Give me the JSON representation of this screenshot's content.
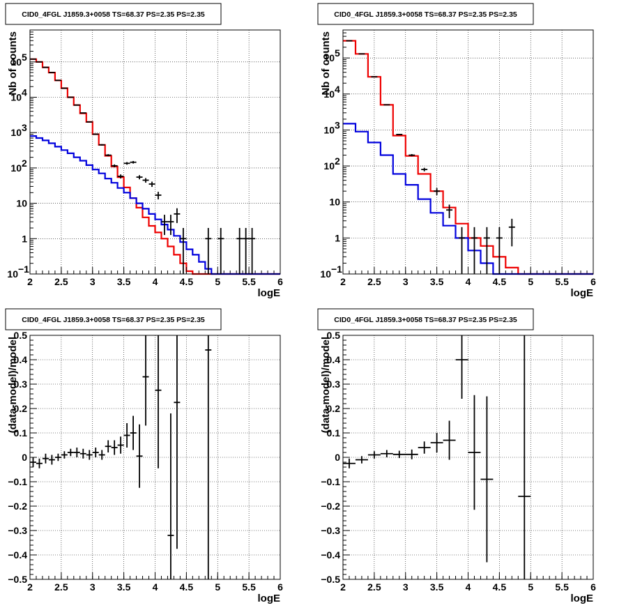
{
  "chart_data": [
    {
      "type": "step-histogram",
      "title": "CID0_4FGL J1859.3+0058 TS=68.37 PS=2.35 PS=2.35",
      "xlabel": "logE",
      "ylabel": "Nb of counts",
      "xlim": [
        2,
        6
      ],
      "ylim": [
        0.1,
        800000
      ],
      "ylog": true,
      "grid": true,
      "xticks": [
        "2",
        "2.5",
        "3",
        "3.5",
        "4",
        "4.5",
        "5",
        "5.5",
        "6"
      ],
      "yticks": [
        {
          "v": 0.1,
          "label": "10",
          "sup": "−1"
        },
        {
          "v": 1,
          "label": "1",
          "sup": ""
        },
        {
          "v": 10,
          "label": "10",
          "sup": ""
        },
        {
          "v": 100,
          "label": "10",
          "sup": "2"
        },
        {
          "v": 1000,
          "label": "10",
          "sup": "3"
        },
        {
          "v": 10000,
          "label": "10",
          "sup": "4"
        },
        {
          "v": 100000,
          "label": "10",
          "sup": "5"
        }
      ],
      "edges": [
        2.0,
        2.1,
        2.2,
        2.3,
        2.4,
        2.5,
        2.6,
        2.7,
        2.8,
        2.9,
        3.0,
        3.1,
        3.2,
        3.3,
        3.4,
        3.5,
        3.6,
        3.7,
        3.8,
        3.9,
        4.0,
        4.1,
        4.2,
        4.3,
        4.4,
        4.5,
        4.6,
        4.7,
        4.8,
        4.9,
        5.0,
        5.1,
        5.2,
        5.3,
        5.4,
        5.5,
        5.6,
        5.7,
        5.8,
        5.9,
        6.0
      ],
      "series": [
        {
          "color": "#ee0000",
          "values": [
            120000,
            100000,
            70000,
            50000,
            30000,
            18000,
            10000,
            6000,
            3500,
            2000,
            900,
            450,
            220,
            110,
            55,
            28,
            14,
            7.5,
            4,
            2.3,
            1.5,
            1,
            0.6,
            0.35,
            0.2,
            0.12,
            0.1,
            0.1,
            0.1,
            0.1,
            0.1,
            0.1,
            0.1,
            0.1,
            0.1,
            0.1,
            0.1,
            0.1,
            0.1,
            0.1
          ]
        },
        {
          "color": "#0000dd",
          "values": [
            800,
            700,
            600,
            500,
            400,
            320,
            260,
            200,
            160,
            120,
            90,
            70,
            50,
            38,
            27,
            20,
            14,
            10,
            7,
            5,
            3.5,
            2.5,
            1.8,
            1.2,
            0.8,
            0.5,
            0.35,
            0.22,
            0.14,
            0.1,
            0.1,
            0.1,
            0.1,
            0.1,
            0.1,
            0.1,
            0.1,
            0.1,
            0.1,
            0.1
          ]
        }
      ],
      "data_points": [
        {
          "x": 2.05,
          "y": 120000
        },
        {
          "x": 2.15,
          "y": 100000
        },
        {
          "x": 2.25,
          "y": 70000
        },
        {
          "x": 2.35,
          "y": 50000
        },
        {
          "x": 2.45,
          "y": 30000
        },
        {
          "x": 2.55,
          "y": 18000
        },
        {
          "x": 2.65,
          "y": 10000
        },
        {
          "x": 2.75,
          "y": 6000
        },
        {
          "x": 2.85,
          "y": 3600
        },
        {
          "x": 2.95,
          "y": 2000
        },
        {
          "x": 3.05,
          "y": 900
        },
        {
          "x": 3.15,
          "y": 450
        },
        {
          "x": 3.25,
          "y": 230
        },
        {
          "x": 3.35,
          "y": 115
        },
        {
          "x": 3.45,
          "y": 58
        },
        {
          "x": 3.55,
          "y": 135
        },
        {
          "x": 3.65,
          "y": 145
        },
        {
          "x": 3.75,
          "y": 55
        },
        {
          "x": 3.85,
          "y": 45
        },
        {
          "x": 3.95,
          "y": 35
        },
        {
          "x": 4.05,
          "y": 17
        },
        {
          "x": 4.15,
          "y": 3
        },
        {
          "x": 4.25,
          "y": 3
        },
        {
          "x": 4.35,
          "y": 5
        },
        {
          "x": 4.45,
          "y": 1
        },
        {
          "x": 4.85,
          "y": 1
        },
        {
          "x": 5.05,
          "y": 1
        },
        {
          "x": 5.35,
          "y": 1
        },
        {
          "x": 5.45,
          "y": 1
        },
        {
          "x": 5.55,
          "y": 1
        }
      ]
    },
    {
      "type": "step-histogram",
      "title": "CID0_4FGL J1859.3+0058 TS=68.37 PS=2.35 PS=2.35",
      "xlabel": "logE",
      "ylabel": "Nb of counts",
      "xlim": [
        2,
        6
      ],
      "ylim": [
        0.1,
        600000
      ],
      "ylog": true,
      "grid": true,
      "xticks": [
        "2",
        "2.5",
        "3",
        "3.5",
        "4",
        "4.5",
        "5",
        "5.5",
        "6"
      ],
      "yticks": [
        {
          "v": 0.1,
          "label": "10",
          "sup": "−1"
        },
        {
          "v": 1,
          "label": "1",
          "sup": ""
        },
        {
          "v": 10,
          "label": "10",
          "sup": ""
        },
        {
          "v": 100,
          "label": "10",
          "sup": "2"
        },
        {
          "v": 1000,
          "label": "10",
          "sup": "3"
        },
        {
          "v": 10000,
          "label": "10",
          "sup": "4"
        },
        {
          "v": 100000,
          "label": "10",
          "sup": "5"
        }
      ],
      "edges": [
        2.0,
        2.2,
        2.4,
        2.6,
        2.8,
        3.0,
        3.2,
        3.4,
        3.6,
        3.8,
        4.0,
        4.2,
        4.4,
        4.6,
        4.8,
        5.0,
        5.2,
        5.4,
        5.6,
        5.8,
        6.0
      ],
      "series": [
        {
          "color": "#ee0000",
          "values": [
            300000,
            130000,
            30000,
            5000,
            700,
            190,
            60,
            20,
            7,
            2.5,
            1,
            0.6,
            0.3,
            0.15,
            0.1,
            0.1,
            0.1,
            0.1,
            0.1,
            0.1
          ]
        },
        {
          "color": "#0000dd",
          "values": [
            1500,
            900,
            450,
            200,
            60,
            30,
            12,
            5,
            2.2,
            1,
            0.45,
            0.2,
            0.1,
            0.1,
            0.1,
            0.1,
            0.1,
            0.1,
            0.1,
            0.1
          ]
        }
      ],
      "data_points": [
        {
          "x": 2.1,
          "y": 300000
        },
        {
          "x": 2.3,
          "y": 130000
        },
        {
          "x": 2.5,
          "y": 30000
        },
        {
          "x": 2.7,
          "y": 5000
        },
        {
          "x": 2.9,
          "y": 750
        },
        {
          "x": 3.1,
          "y": 200
        },
        {
          "x": 3.3,
          "y": 80
        },
        {
          "x": 3.5,
          "y": 20
        },
        {
          "x": 3.7,
          "y": 6
        },
        {
          "x": 3.9,
          "y": 1
        },
        {
          "x": 4.1,
          "y": 1
        },
        {
          "x": 4.3,
          "y": 1
        },
        {
          "x": 4.5,
          "y": 1
        },
        {
          "x": 4.7,
          "y": 2
        }
      ]
    },
    {
      "type": "errorbar",
      "title": "CID0_4FGL J1859.3+0058 TS=68.37 PS=2.35 PS=2.35",
      "xlabel": "logE",
      "ylabel": "(data-model)/model",
      "xlim": [
        2,
        6
      ],
      "ylim": [
        -0.5,
        0.5
      ],
      "ylog": false,
      "grid": true,
      "xticks": [
        "2",
        "2.5",
        "3",
        "3.5",
        "4",
        "4.5",
        "5",
        "5.5",
        "6"
      ],
      "yticks": [
        {
          "v": -0.5,
          "label": "−0.5"
        },
        {
          "v": -0.4,
          "label": "−0.4"
        },
        {
          "v": -0.3,
          "label": "−0.3"
        },
        {
          "v": -0.2,
          "label": "−0.2"
        },
        {
          "v": -0.1,
          "label": "−0.1"
        },
        {
          "v": 0,
          "label": "0"
        },
        {
          "v": 0.1,
          "label": "0.1"
        },
        {
          "v": 0.2,
          "label": "0.2"
        },
        {
          "v": 0.3,
          "label": "0.3"
        },
        {
          "v": 0.4,
          "label": "0.4"
        },
        {
          "v": 0.5,
          "label": "0.5"
        }
      ],
      "points": [
        {
          "x": 2.05,
          "y": -0.02,
          "e": 0.02,
          "w": 0.05
        },
        {
          "x": 2.15,
          "y": -0.025,
          "e": 0.02,
          "w": 0.05
        },
        {
          "x": 2.25,
          "y": -0.005,
          "e": 0.02,
          "w": 0.05
        },
        {
          "x": 2.35,
          "y": -0.01,
          "e": 0.02,
          "w": 0.05
        },
        {
          "x": 2.45,
          "y": 0.0,
          "e": 0.015,
          "w": 0.05
        },
        {
          "x": 2.55,
          "y": 0.01,
          "e": 0.015,
          "w": 0.05
        },
        {
          "x": 2.65,
          "y": 0.02,
          "e": 0.015,
          "w": 0.05
        },
        {
          "x": 2.75,
          "y": 0.02,
          "e": 0.02,
          "w": 0.05
        },
        {
          "x": 2.85,
          "y": 0.015,
          "e": 0.02,
          "w": 0.05
        },
        {
          "x": 2.95,
          "y": 0.01,
          "e": 0.02,
          "w": 0.05
        },
        {
          "x": 3.05,
          "y": 0.02,
          "e": 0.02,
          "w": 0.05
        },
        {
          "x": 3.15,
          "y": 0.01,
          "e": 0.02,
          "w": 0.05
        },
        {
          "x": 3.25,
          "y": 0.045,
          "e": 0.025,
          "w": 0.05
        },
        {
          "x": 3.35,
          "y": 0.04,
          "e": 0.03,
          "w": 0.05
        },
        {
          "x": 3.45,
          "y": 0.05,
          "e": 0.035,
          "w": 0.05
        },
        {
          "x": 3.55,
          "y": 0.09,
          "e": 0.05,
          "w": 0.05
        },
        {
          "x": 3.65,
          "y": 0.1,
          "e": 0.07,
          "w": 0.05
        },
        {
          "x": 3.75,
          "y": 0.005,
          "e": 0.13,
          "w": 0.05
        },
        {
          "x": 3.85,
          "y": 0.33,
          "e": 0.2,
          "w": 0.05
        },
        {
          "x": 4.05,
          "y": 0.275,
          "e": 0.32,
          "w": 0.05
        },
        {
          "x": 4.25,
          "y": -0.32,
          "e": 0.5,
          "w": 0.05
        },
        {
          "x": 4.35,
          "y": 0.225,
          "e": 0.6,
          "w": 0.05
        },
        {
          "x": 4.85,
          "y": 0.44,
          "e": 1.0,
          "w": 0.05
        }
      ]
    },
    {
      "type": "errorbar",
      "title": "CID0_4FGL J1859.3+0058 TS=68.37 PS=2.35 PS=2.35",
      "xlabel": "logE",
      "ylabel": "(data-model)/model",
      "xlim": [
        2,
        6
      ],
      "ylim": [
        -0.5,
        0.5
      ],
      "ylog": false,
      "grid": true,
      "xticks": [
        "2",
        "2.5",
        "3",
        "3.5",
        "4",
        "4.5",
        "5",
        "5.5",
        "6"
      ],
      "yticks": [
        {
          "v": -0.5,
          "label": "−0.5"
        },
        {
          "v": -0.4,
          "label": "−0.4"
        },
        {
          "v": -0.3,
          "label": "−0.3"
        },
        {
          "v": -0.2,
          "label": "−0.2"
        },
        {
          "v": -0.1,
          "label": "−0.1"
        },
        {
          "v": 0,
          "label": "0"
        },
        {
          "v": 0.1,
          "label": "0.1"
        },
        {
          "v": 0.2,
          "label": "0.2"
        },
        {
          "v": 0.3,
          "label": "0.3"
        },
        {
          "v": 0.4,
          "label": "0.4"
        },
        {
          "v": 0.5,
          "label": "0.5"
        }
      ],
      "points": [
        {
          "x": 2.1,
          "y": -0.025,
          "e": 0.02,
          "w": 0.1
        },
        {
          "x": 2.3,
          "y": -0.01,
          "e": 0.015,
          "w": 0.1
        },
        {
          "x": 2.5,
          "y": 0.01,
          "e": 0.015,
          "w": 0.1
        },
        {
          "x": 2.7,
          "y": 0.015,
          "e": 0.015,
          "w": 0.1
        },
        {
          "x": 2.9,
          "y": 0.012,
          "e": 0.015,
          "w": 0.1
        },
        {
          "x": 3.1,
          "y": 0.012,
          "e": 0.02,
          "w": 0.1
        },
        {
          "x": 3.3,
          "y": 0.04,
          "e": 0.025,
          "w": 0.1
        },
        {
          "x": 3.5,
          "y": 0.06,
          "e": 0.04,
          "w": 0.1
        },
        {
          "x": 3.7,
          "y": 0.07,
          "e": 0.08,
          "w": 0.1
        },
        {
          "x": 3.9,
          "y": 0.4,
          "e": 0.16,
          "w": 0.1
        },
        {
          "x": 4.1,
          "y": 0.02,
          "e": 0.235,
          "w": 0.1
        },
        {
          "x": 4.3,
          "y": -0.09,
          "e": 0.34,
          "w": 0.1
        },
        {
          "x": 4.9,
          "y": -0.16,
          "e": 0.8,
          "w": 0.1
        }
      ]
    }
  ]
}
